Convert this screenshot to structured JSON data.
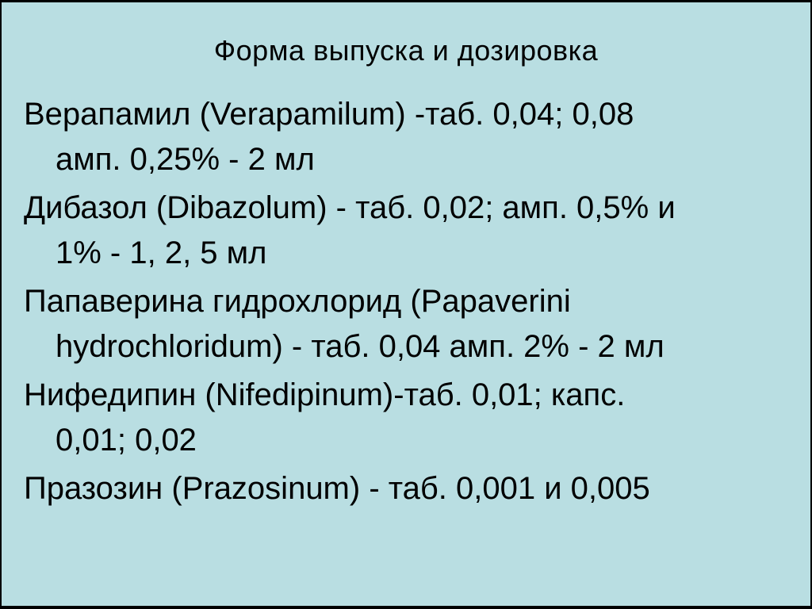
{
  "slide": {
    "title": "Форма выпуска и дозировка",
    "colors": {
      "background": "#b9dee2",
      "frame": "#000000",
      "text": "#000000"
    },
    "entries": [
      {
        "line1": "Верапамил (Verapamilum) -таб. 0,04; 0,08",
        "line2": "амп. 0,25% - 2 мл"
      },
      {
        "line1": "Дибазол (Dibazolum) - таб. 0,02; амп. 0,5% и",
        "line2": "1% - 1, 2, 5 мл"
      },
      {
        "line1": "Папаверина гидрохлорид (Papaverini",
        "line2": "hydrochloridum) - таб. 0,04 амп. 2% - 2 мл"
      },
      {
        "line1": "Нифедипин (Nifedipinum)-таб. 0,01; капс.",
        "line2": "0,01; 0,02"
      },
      {
        "line1": "Празозин (Prazosinum) - таб. 0,001 и 0,005"
      }
    ]
  }
}
